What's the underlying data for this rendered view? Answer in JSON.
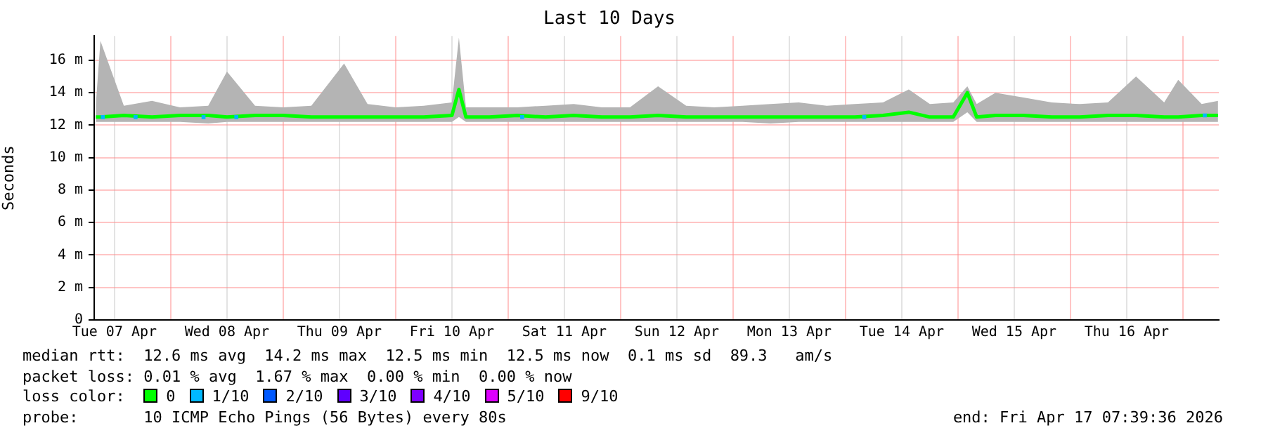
{
  "chart_data": {
    "type": "line",
    "title": "Last 10 Days",
    "ylabel": "Seconds",
    "legend_title": "loss color:",
    "legend": "bottom",
    "grid": true,
    "xlim": [
      "2026-04-07T07:40",
      "2026-04-17T07:40"
    ],
    "xticks": [
      {
        "value": "2026-04-07T12:00",
        "label": "Tue 07 Apr"
      },
      {
        "value": "2026-04-08T00:00",
        "label": null
      },
      {
        "value": "2026-04-08T12:00",
        "label": "Wed 08 Apr"
      },
      {
        "value": "2026-04-09T00:00",
        "label": null
      },
      {
        "value": "2026-04-09T12:00",
        "label": "Thu 09 Apr"
      },
      {
        "value": "2026-04-10T00:00",
        "label": null
      },
      {
        "value": "2026-04-10T12:00",
        "label": "Fri 10 Apr"
      },
      {
        "value": "2026-04-11T00:00",
        "label": null
      },
      {
        "value": "2026-04-11T12:00",
        "label": "Sat 11 Apr"
      },
      {
        "value": "2026-04-12T00:00",
        "label": null
      },
      {
        "value": "2026-04-12T12:00",
        "label": "Sun 12 Apr"
      },
      {
        "value": "2026-04-13T00:00",
        "label": null
      },
      {
        "value": "2026-04-13T12:00",
        "label": "Mon 13 Apr"
      },
      {
        "value": "2026-04-14T00:00",
        "label": null
      },
      {
        "value": "2026-04-14T12:00",
        "label": "Tue 14 Apr"
      },
      {
        "value": "2026-04-15T00:00",
        "label": null
      },
      {
        "value": "2026-04-15T12:00",
        "label": "Wed 15 Apr"
      },
      {
        "value": "2026-04-16T00:00",
        "label": null
      },
      {
        "value": "2026-04-16T12:00",
        "label": "Thu 16 Apr"
      },
      {
        "value": "2026-04-17T00:00",
        "label": null
      }
    ],
    "ylim": [
      0,
      17.5
    ],
    "yticks": [
      0,
      {
        "value": 2,
        "label": "2 m"
      },
      {
        "value": 4,
        "label": "4 m"
      },
      {
        "value": 6,
        "label": "6 m"
      },
      {
        "value": 8,
        "label": "8 m"
      },
      {
        "value": 10,
        "label": "10 m"
      },
      {
        "value": 12,
        "label": "12 m"
      },
      {
        "value": 14,
        "label": "14 m"
      },
      {
        "value": 16,
        "label": "16 m"
      }
    ],
    "series": [
      {
        "name": "0",
        "type": "line",
        "color": "#00ff00",
        "marker": "none",
        "x": [
          "2026-04-07T08:00",
          "2026-04-07T09:00",
          "2026-04-07T14:00",
          "2026-04-07T20:00",
          "2026-04-08T02:00",
          "2026-04-08T08:00",
          "2026-04-08T12:00",
          "2026-04-08T18:00",
          "2026-04-09T00:00",
          "2026-04-09T06:00",
          "2026-04-09T13:00",
          "2026-04-09T18:00",
          "2026-04-10T00:00",
          "2026-04-10T06:00",
          "2026-04-10T12:00",
          "2026-04-10T13:30",
          "2026-04-10T15:00",
          "2026-04-10T20:00",
          "2026-04-11T02:00",
          "2026-04-11T08:00",
          "2026-04-11T14:00",
          "2026-04-11T20:00",
          "2026-04-12T02:00",
          "2026-04-12T08:00",
          "2026-04-12T14:00",
          "2026-04-12T20:00",
          "2026-04-13T02:00",
          "2026-04-13T08:00",
          "2026-04-13T14:00",
          "2026-04-13T20:00",
          "2026-04-14T02:00",
          "2026-04-14T08:00",
          "2026-04-14T13:30",
          "2026-04-14T18:00",
          "2026-04-14T23:00",
          "2026-04-15T02:00",
          "2026-04-15T04:00",
          "2026-04-15T08:00",
          "2026-04-15T14:00",
          "2026-04-15T20:00",
          "2026-04-16T02:00",
          "2026-04-16T08:00",
          "2026-04-16T14:00",
          "2026-04-16T20:00",
          "2026-04-16T23:00",
          "2026-04-17T04:00",
          "2026-04-17T07:30"
        ],
        "values": [
          12.5,
          12.5,
          12.6,
          12.5,
          12.6,
          12.6,
          12.5,
          12.6,
          12.6,
          12.5,
          12.5,
          12.5,
          12.5,
          12.5,
          12.6,
          14.2,
          12.5,
          12.5,
          12.6,
          12.5,
          12.6,
          12.5,
          12.5,
          12.6,
          12.5,
          12.5,
          12.5,
          12.5,
          12.5,
          12.5,
          12.5,
          12.6,
          12.8,
          12.5,
          12.5,
          14.0,
          12.5,
          12.6,
          12.6,
          12.5,
          12.5,
          12.6,
          12.6,
          12.5,
          12.5,
          12.6,
          12.6
        ],
        "lower": [
          12.2,
          12.2,
          12.2,
          12.2,
          12.2,
          12.1,
          12.2,
          12.2,
          12.2,
          12.2,
          12.2,
          12.2,
          12.2,
          12.2,
          12.2,
          12.5,
          12.2,
          12.2,
          12.2,
          12.2,
          12.2,
          12.2,
          12.2,
          12.2,
          12.2,
          12.2,
          12.2,
          12.1,
          12.2,
          12.2,
          12.2,
          12.2,
          12.2,
          12.2,
          12.2,
          12.8,
          12.2,
          12.2,
          12.2,
          12.2,
          12.2,
          12.2,
          12.2,
          12.2,
          12.2,
          12.2,
          12.2
        ],
        "upper": [
          13.2,
          17.2,
          13.2,
          13.5,
          13.1,
          13.2,
          15.3,
          13.2,
          13.1,
          13.2,
          15.8,
          13.3,
          13.1,
          13.2,
          13.4,
          17.4,
          13.1,
          13.1,
          13.1,
          13.2,
          13.3,
          13.1,
          13.1,
          14.4,
          13.2,
          13.1,
          13.2,
          13.3,
          13.4,
          13.2,
          13.3,
          13.4,
          14.2,
          13.3,
          13.4,
          14.4,
          13.3,
          14.0,
          13.7,
          13.4,
          13.3,
          13.4,
          15.0,
          13.4,
          14.8,
          13.3,
          13.5
        ]
      },
      {
        "name": "1/10",
        "type": "scatter",
        "color": "#00b8ff",
        "marker": "square",
        "x": [
          "2026-04-07T09:30",
          "2026-04-07T16:30",
          "2026-04-08T07:00",
          "2026-04-08T14:00",
          "2026-04-11T03:00",
          "2026-04-14T04:00",
          "2026-04-17T04:40"
        ],
        "values": [
          12.5,
          12.5,
          12.5,
          12.5,
          12.5,
          12.5,
          12.6
        ]
      },
      {
        "name": "2/10",
        "type": "scatter",
        "color": "#0059ff",
        "marker": "square"
      },
      {
        "name": "3/10",
        "type": "scatter",
        "color": "#5e00ff",
        "marker": "square"
      },
      {
        "name": "4/10",
        "type": "scatter",
        "color": "#7e00ff",
        "marker": "square"
      },
      {
        "name": "5/10",
        "type": "scatter",
        "color": "#dd00ff",
        "marker": "square"
      },
      {
        "name": "9/10",
        "type": "scatter",
        "color": "#ff0000",
        "marker": "square"
      }
    ],
    "annotations": [
      "median rtt:  12.6 ms avg  14.2 ms max  12.5 ms min  12.5 ms now  0.1 ms sd  89.3   am/s",
      "packet loss: 0.01 % avg  1.67 % max  0.00 % min  0.00 % now",
      "probe:       10 ICMP Echo Pings (56 Bytes) every 80s",
      "end: Fri Apr 17 07:39:36 2026"
    ]
  }
}
